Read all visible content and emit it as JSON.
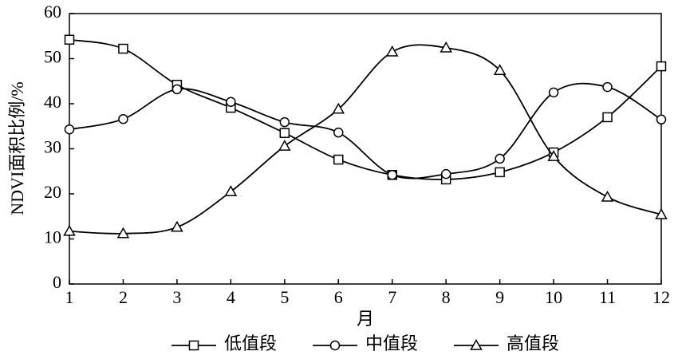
{
  "chart_data": {
    "type": "line",
    "x_label": "月",
    "y_label": "NDVI面积比例/%",
    "x": [
      1,
      2,
      3,
      4,
      5,
      6,
      7,
      8,
      9,
      10,
      11,
      12
    ],
    "xlim": [
      1,
      12
    ],
    "xticks": [
      1,
      2,
      3,
      4,
      5,
      6,
      7,
      8,
      9,
      10,
      11,
      12
    ],
    "ylim": [
      0,
      60
    ],
    "yticks": [
      0,
      10,
      20,
      30,
      40,
      50,
      60
    ],
    "smooth": true,
    "legend": "bottom",
    "series": [
      {
        "name": "低值段",
        "color": "#000000",
        "marker": "square",
        "values": [
          54.2,
          52.2,
          44.2,
          39.1,
          33.5,
          27.6,
          24.2,
          23.2,
          24.8,
          29.2,
          37.0,
          48.3
        ]
      },
      {
        "name": "中值段",
        "color": "#000000",
        "marker": "circle",
        "values": [
          34.3,
          36.6,
          43.2,
          40.4,
          35.9,
          33.6,
          24.2,
          24.4,
          27.8,
          42.5,
          43.7,
          36.5
        ]
      },
      {
        "name": "高值段",
        "color": "#000000",
        "marker": "triangle",
        "values": [
          11.7,
          11.2,
          12.6,
          20.5,
          30.6,
          38.8,
          51.5,
          52.4,
          47.4,
          28.3,
          19.3,
          15.4
        ]
      }
    ]
  }
}
